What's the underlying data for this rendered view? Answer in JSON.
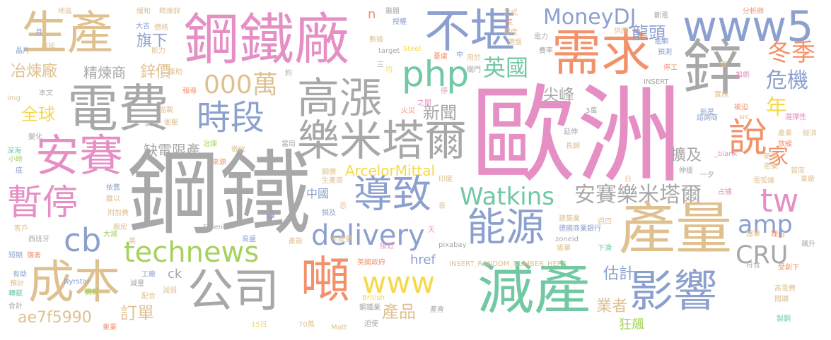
{
  "palette": {
    "pink": "#e58fc4",
    "gray": "#a8a8a8",
    "blue": "#8ca0cf",
    "tan": "#dfc190",
    "orange": "#f3916a",
    "green": "#71c8a3",
    "lime": "#a6d15d",
    "yellow": "#f5d94a"
  },
  "words": [
    {
      "text": "歐洲",
      "color": "pink"
    },
    {
      "text": "鋼鐵",
      "color": "gray"
    },
    {
      "text": "鋼鐵廠",
      "color": "pink"
    },
    {
      "text": "電費",
      "color": "gray"
    },
    {
      "text": "生產",
      "color": "tan"
    },
    {
      "text": "鋅",
      "color": "gray"
    },
    {
      "text": "需求",
      "color": "orange"
    },
    {
      "text": "www5",
      "color": "blue"
    },
    {
      "text": "不堪",
      "color": "blue"
    },
    {
      "text": "高漲",
      "color": "gray"
    },
    {
      "text": "樂米塔爾",
      "color": "gray"
    },
    {
      "text": "安賽",
      "color": "pink"
    },
    {
      "text": "時段",
      "color": "blue"
    },
    {
      "text": "php",
      "color": "green"
    },
    {
      "text": "000萬",
      "color": "tan"
    },
    {
      "text": "MoneyDJ",
      "color": "blue"
    },
    {
      "text": "英國",
      "color": "green"
    },
    {
      "text": "冶煉廠",
      "color": "tan"
    },
    {
      "text": "精煉商",
      "color": "gray"
    },
    {
      "text": "鋅價",
      "color": "tan"
    },
    {
      "text": "旗下",
      "color": "blue"
    },
    {
      "text": "龍頭",
      "color": "blue"
    },
    {
      "text": "冬季",
      "color": "orange"
    },
    {
      "text": "危機",
      "color": "blue"
    },
    {
      "text": "說",
      "color": "orange"
    },
    {
      "text": "家",
      "color": "orange"
    },
    {
      "text": "年",
      "color": "yellow"
    },
    {
      "text": "全球",
      "color": "yellow"
    },
    {
      "text": "暫停",
      "color": "pink"
    },
    {
      "text": "導致",
      "color": "blue"
    },
    {
      "text": "新聞",
      "color": "gray"
    },
    {
      "text": "尖峰",
      "color": "gray"
    },
    {
      "text": "擴及",
      "color": "gray"
    },
    {
      "text": "缺電限產",
      "color": "gray"
    },
    {
      "text": "ArcelorMittal",
      "color": "yellow"
    },
    {
      "text": "Watkins",
      "color": "green"
    },
    {
      "text": "安賽樂米塔爾",
      "color": "gray"
    },
    {
      "text": "tw",
      "color": "pink"
    },
    {
      "text": "amp",
      "color": "blue"
    },
    {
      "text": "cb",
      "color": "blue"
    },
    {
      "text": "technews",
      "color": "lime"
    },
    {
      "text": "delivery",
      "color": "blue"
    },
    {
      "text": "能源",
      "color": "blue"
    },
    {
      "text": "產量",
      "color": "tan"
    },
    {
      "text": "CRU",
      "color": "gray"
    },
    {
      "text": "成本",
      "color": "tan"
    },
    {
      "text": "公司",
      "color": "gray"
    },
    {
      "text": "噸",
      "color": "orange"
    },
    {
      "text": "www",
      "color": "yellow"
    },
    {
      "text": "減產",
      "color": "green"
    },
    {
      "text": "影響",
      "color": "blue"
    },
    {
      "text": "估計",
      "color": "blue"
    },
    {
      "text": "業者",
      "color": "tan"
    },
    {
      "text": "狂飆",
      "color": "lime"
    },
    {
      "text": "產品",
      "color": "tan"
    },
    {
      "text": "href",
      "color": "blue"
    },
    {
      "text": "ae7f5990",
      "color": "tan"
    },
    {
      "text": "訂單",
      "color": "tan"
    },
    {
      "text": "中國",
      "color": "blue"
    },
    {
      "text": "a",
      "color": "blue"
    },
    {
      "text": "ck",
      "color": "gray"
    },
    {
      "text": "n",
      "color": "orange"
    },
    {
      "text": "地區",
      "color": "tan"
    },
    {
      "text": "緩和",
      "color": "tan"
    },
    {
      "text": "精煉鋅",
      "color": "tan"
    },
    {
      "text": "價格",
      "color": "tan"
    },
    {
      "text": "大吉",
      "color": "blue"
    },
    {
      "text": "月",
      "color": "blue"
    },
    {
      "text": "蔓延",
      "color": "tan"
    },
    {
      "text": "晶片",
      "color": "blue"
    },
    {
      "text": "能力",
      "color": "tan"
    },
    {
      "text": "援助",
      "color": "tan"
    },
    {
      "text": "報導",
      "color": "orange"
    },
    {
      "text": "本文",
      "color": "gray"
    },
    {
      "text": "img",
      "color": "tan"
    },
    {
      "text": "變化",
      "color": "gray"
    },
    {
      "text": "深海",
      "color": "green"
    },
    {
      "text": "小時",
      "color": "lime"
    },
    {
      "text": "底",
      "color": "blue"
    },
    {
      "text": "衝擊",
      "color": "tan"
    },
    {
      "text": "溢載",
      "color": "tan"
    },
    {
      "text": "avw",
      "color": "gray"
    },
    {
      "text": "徵收",
      "color": "tan"
    },
    {
      "text": "冶煉",
      "color": "lime"
    },
    {
      "text": "當局",
      "color": "gray"
    },
    {
      "text": "來源",
      "color": "orange"
    },
    {
      "text": "依舊",
      "color": "blue"
    },
    {
      "text": "雖以",
      "color": "tan"
    },
    {
      "text": "附加費",
      "color": "tan"
    },
    {
      "text": "廠房",
      "color": "tan"
    },
    {
      "text": "大減",
      "color": "lime"
    },
    {
      "text": "英",
      "color": "tan"
    },
    {
      "text": "西班牙",
      "color": "gray"
    },
    {
      "text": "客戶",
      "color": "tan"
    },
    {
      "text": "短期",
      "color": "blue"
    },
    {
      "text": "傷害",
      "color": "orange"
    },
    {
      "text": "有助",
      "color": "blue"
    },
    {
      "text": "預計",
      "color": "tan"
    },
    {
      "text": "轉載",
      "color": "green"
    },
    {
      "text": "合計",
      "color": "gray"
    },
    {
      "text": "工廠",
      "color": "blue"
    },
    {
      "text": "減量",
      "color": "gray"
    },
    {
      "text": "減弱",
      "color": "tan"
    },
    {
      "text": "配合",
      "color": "tan"
    },
    {
      "text": "Nyrstar",
      "color": "blue"
    },
    {
      "text": "實質",
      "color": "lime"
    },
    {
      "text": "東業",
      "color": "orange"
    },
    {
      "text": "Sidenor",
      "color": "gray"
    },
    {
      "text": "高盛",
      "color": "blue"
    },
    {
      "text": "產能",
      "color": "tan"
    },
    {
      "text": "接近",
      "color": "pink"
    },
    {
      "text": "英國政府",
      "color": "orange"
    },
    {
      "text": "British",
      "color": "yellow"
    },
    {
      "text": "鋼鐵業",
      "color": "gray"
    },
    {
      "text": "15日",
      "color": "yellow"
    },
    {
      "text": "70萬",
      "color": "tan"
    },
    {
      "text": "Matt",
      "color": "tan"
    },
    {
      "text": "迫使",
      "color": "gray"
    },
    {
      "text": "產會",
      "color": "gray"
    },
    {
      "text": "INSERT_RANDOM_NUMBER_HERE",
      "color": "tan"
    },
    {
      "text": "pixabay",
      "color": "gray"
    },
    {
      "text": "年產量",
      "color": "tan"
    },
    {
      "text": "損及",
      "color": "blue"
    },
    {
      "text": "恐",
      "color": "tan"
    },
    {
      "text": "天",
      "color": "pink"
    },
    {
      "text": "鋼價",
      "color": "tan"
    },
    {
      "text": "生產商",
      "color": "tan"
    },
    {
      "text": "印度",
      "color": "tan"
    },
    {
      "text": "首",
      "color": "tan"
    },
    {
      "text": "建築業",
      "color": "tan"
    },
    {
      "text": "週四",
      "color": "tan"
    },
    {
      "text": "德國商業銀行",
      "color": "blue"
    },
    {
      "text": "zoneid",
      "color": "gray"
    },
    {
      "text": "帳單",
      "color": "tan"
    },
    {
      "text": "下滑",
      "color": "green"
    },
    {
      "text": "Steel",
      "color": "yellow"
    },
    {
      "text": "方式",
      "color": "tan"
    },
    {
      "text": "荒",
      "color": "orange"
    },
    {
      "text": "程度",
      "color": "tan"
    },
    {
      "text": "電力",
      "color": "gray"
    },
    {
      "text": "費率",
      "color": "gray"
    },
    {
      "text": "供應",
      "color": "tan"
    },
    {
      "text": "電網",
      "color": "blue"
    },
    {
      "text": "斷電",
      "color": "gray"
    },
    {
      "text": "分析師",
      "color": "orange"
    },
    {
      "text": "預測",
      "color": "blue"
    },
    {
      "text": "停工",
      "color": "orange"
    },
    {
      "text": "加劇",
      "color": "pink"
    },
    {
      "text": "原",
      "color": "tan"
    },
    {
      "text": "INSERT",
      "color": "gray"
    },
    {
      "text": "實施",
      "color": "tan"
    },
    {
      "text": "諮詢商",
      "color": "blue"
    },
    {
      "text": "被迫",
      "color": "orange"
    },
    {
      "text": "新星",
      "color": "blue"
    },
    {
      "text": "src",
      "color": "tan"
    },
    {
      "text": "選擇性",
      "color": "pink"
    },
    {
      "text": "產業",
      "color": "tan"
    },
    {
      "text": "經濟",
      "color": "tan"
    },
    {
      "text": "放緩",
      "color": "orange"
    },
    {
      "text": "_blank",
      "color": "pink"
    },
    {
      "text": "新高",
      "color": "tan"
    },
    {
      "text": "密集",
      "color": "tan"
    },
    {
      "text": "首席",
      "color": "tan"
    },
    {
      "text": "車廠",
      "color": "tan"
    },
    {
      "text": "電弧爐",
      "color": "tan"
    },
    {
      "text": "占據",
      "color": "pink"
    },
    {
      "text": "伸援",
      "color": "gray"
    },
    {
      "text": "一夕",
      "color": "gray"
    },
    {
      "text": "爆單",
      "color": "tan"
    },
    {
      "text": "理由",
      "color": "orange"
    },
    {
      "text": "飆升",
      "color": "gray"
    },
    {
      "text": "符合",
      "color": "gray"
    },
    {
      "text": "受創下",
      "color": "orange"
    },
    {
      "text": "高電費",
      "color": "tan"
    },
    {
      "text": "閱讀",
      "color": "tan"
    },
    {
      "text": "製鋼",
      "color": "green"
    },
    {
      "text": "長鋼",
      "color": "tan"
    },
    {
      "text": "延伸",
      "color": "gray"
    },
    {
      "text": "3萬",
      "color": "gray"
    },
    {
      "text": "日",
      "color": "tan"
    },
    {
      "text": "target",
      "color": "gray"
    },
    {
      "text": "數據",
      "color": "tan"
    },
    {
      "text": "授權",
      "color": "blue"
    },
    {
      "text": "雕題",
      "color": "gray"
    },
    {
      "text": "約",
      "color": "gray"
    },
    {
      "text": "均",
      "color": "yellow"
    },
    {
      "text": "停",
      "color": "pink"
    },
    {
      "text": "之間",
      "color": "pink"
    },
    {
      "text": "火災",
      "color": "orange"
    },
    {
      "text": "三",
      "color": "gray"
    },
    {
      "text": "用於",
      "color": "tan"
    },
    {
      "text": "關門",
      "color": "gray"
    },
    {
      "text": "價盤",
      "color": "tan"
    },
    {
      "text": "憂慮",
      "color": "orange"
    },
    {
      "text": "中",
      "color": "blue"
    }
  ]
}
